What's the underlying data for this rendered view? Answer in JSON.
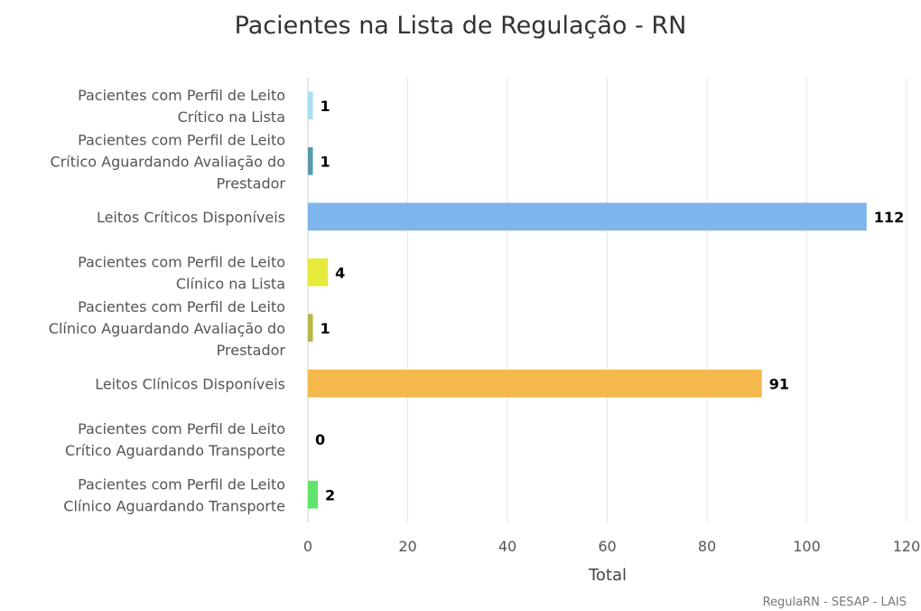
{
  "chart_data": {
    "type": "bar",
    "orientation": "horizontal",
    "title": "Pacientes na Lista de Regulação - RN",
    "xlabel": "Total",
    "xlim": [
      0,
      120
    ],
    "ticks": [
      0,
      20,
      40,
      60,
      80,
      100,
      120
    ],
    "grid": true,
    "categories": [
      [
        "Pacientes com Perfil de Leito",
        "Crítico na Lista"
      ],
      [
        "Pacientes com Perfil de Leito",
        "Crítico Aguardando Avaliação do",
        "Prestador"
      ],
      [
        "Leitos Críticos Disponíveis"
      ],
      [
        "Pacientes com Perfil de Leito",
        "Clínico na Lista"
      ],
      [
        "Pacientes com Perfil de Leito",
        "Clínico Aguardando Avaliação do",
        "Prestador"
      ],
      [
        "Leitos Clínicos Disponíveis"
      ],
      [
        "Pacientes com Perfil de Leito",
        "Crítico Aguardando Transporte"
      ],
      [
        "Pacientes com Perfil de Leito",
        "Clínico Aguardando Transporte"
      ]
    ],
    "values": [
      1,
      1,
      112,
      4,
      1,
      91,
      0,
      2
    ],
    "colors": [
      "#a8def0",
      "#5b9aaa",
      "#7eb5ec",
      "#e6ea3a",
      "#b5b84a",
      "#f5b84c",
      "#888888",
      "#5fe36e"
    ]
  },
  "credit": "RegulaRN - SESAP - LAIS"
}
